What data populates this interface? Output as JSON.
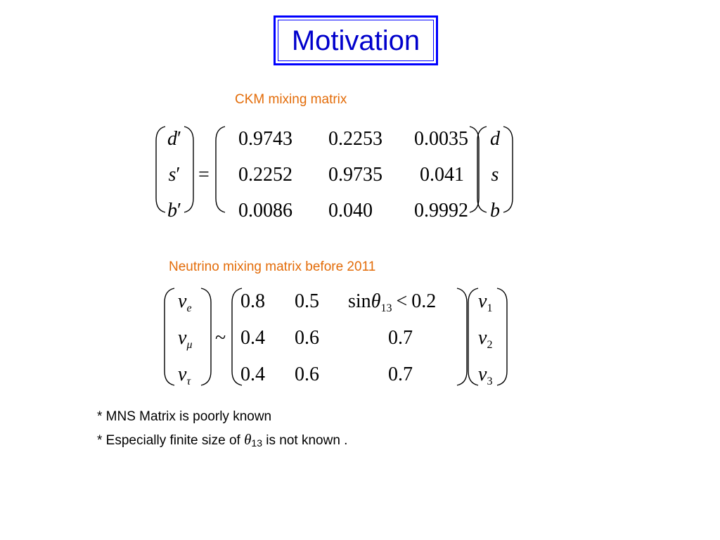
{
  "slide": {
    "title": "Motivation",
    "ckm": {
      "heading": "CKM mixing matrix",
      "lhs": [
        "d",
        "s",
        "b"
      ],
      "prime": "′",
      "relation": "=",
      "rows": [
        [
          "0.9743",
          "0.2253",
          "0.0035"
        ],
        [
          "0.2252",
          "0.9735",
          "0.041"
        ],
        [
          "0.0086",
          "0.040",
          "0.9992"
        ]
      ],
      "rhs": [
        "d",
        "s",
        "b"
      ]
    },
    "neutrino": {
      "heading": "Neutrino mixing matrix before 2011",
      "lhs_symbol": "ν",
      "lhs_subs": [
        "e",
        "μ",
        "τ"
      ],
      "relation": "~",
      "rows": [
        [
          "0.8",
          "0.5"
        ],
        [
          "0.4",
          "0.6",
          "0.7"
        ],
        [
          "0.4",
          "0.6",
          "0.7"
        ]
      ],
      "cell_13": {
        "func": "sin",
        "symbol": "θ",
        "sub": "13",
        "op": "<",
        "bound": "0.2"
      },
      "rhs_symbol": "ν",
      "rhs_subs": [
        "1",
        "2",
        "3"
      ]
    },
    "notes": {
      "line1": "* MNS Matrix is poorly known",
      "line2_prefix": "* Especially finite size of ",
      "line2_symbol": "θ",
      "line2_sub": "13",
      "line2_suffix": " is not known ."
    }
  }
}
